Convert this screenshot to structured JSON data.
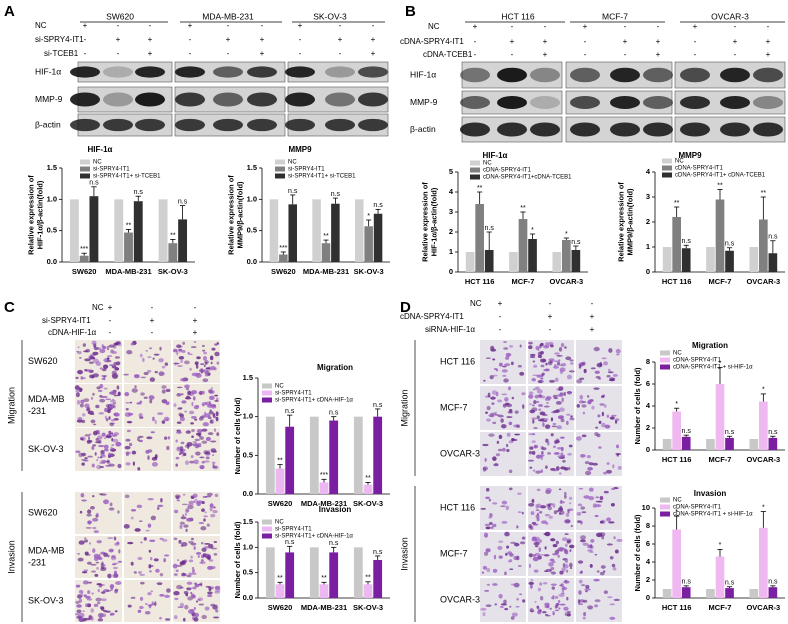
{
  "panels": {
    "A": {
      "letter": "A",
      "treatments": [
        "NC",
        "si-SPRY4-IT1",
        "si-TCEB1"
      ],
      "signs": [
        [
          "+",
          "-",
          "-"
        ],
        [
          "-",
          "+",
          "+"
        ],
        [
          "-",
          "-",
          "+"
        ]
      ],
      "cell_lines": [
        "SW620",
        "MDA-MB-231",
        "SK-OV-3"
      ],
      "blot_rows": [
        "HIF-1α",
        "MMP-9",
        "β-actin"
      ]
    },
    "B": {
      "letter": "B",
      "treatments": [
        "NC",
        "cDNA-SPRY4-IT1",
        "cDNA-TCEB1"
      ],
      "signs": [
        [
          "+",
          "-",
          "-"
        ],
        [
          "-",
          "+",
          "+"
        ],
        [
          "-",
          "-",
          "+"
        ]
      ],
      "cell_lines": [
        "HCT 116",
        "MCF-7",
        "OVCAR-3"
      ],
      "blot_rows": [
        "HIF-1α",
        "MMP-9",
        "β-actin"
      ]
    },
    "C": {
      "letter": "C",
      "treatments": [
        "NC",
        "si-SPRY4-IT1",
        "cDNA-HIF-1α"
      ],
      "signs": [
        [
          "+",
          "-",
          "-"
        ],
        [
          "-",
          "+",
          "+"
        ],
        [
          "-",
          "-",
          "+"
        ]
      ],
      "assays": [
        "Migration",
        "Invasion"
      ],
      "row_labels": [
        [
          "SW620"
        ],
        [
          "MDA-MB",
          "-231"
        ],
        [
          "SK-OV-3"
        ]
      ]
    },
    "D": {
      "letter": "D",
      "treatments": [
        "NC",
        "cDNA-SPRY4-IT1",
        "siRNA-HIF-1α"
      ],
      "signs": [
        [
          "+",
          "-",
          "-"
        ],
        [
          "-",
          "+",
          "+"
        ],
        [
          "-",
          "-",
          "+"
        ]
      ],
      "assays": [
        "Migration",
        "Invasion"
      ],
      "row_labels": [
        [
          "HCT 116"
        ],
        [
          "MCF-7"
        ],
        [
          "OVCAR-3"
        ]
      ]
    }
  },
  "chart_data": [
    {
      "type": "bar",
      "title": "HIF-1α",
      "ylabel": [
        "Relative expression of",
        "HIF-1α/β-actin(fold)"
      ],
      "categories": [
        "SW620",
        "MDA-MB-231",
        "SK-OV-3"
      ],
      "series": [
        {
          "name": "NC",
          "color": "#d0d0d0",
          "values": [
            1,
            1,
            1
          ]
        },
        {
          "name": "si-SPRY4-IT1",
          "color": "#808080",
          "values": [
            0.1,
            0.47,
            0.3
          ],
          "errors": [
            0.04,
            0.05,
            0.06
          ],
          "annotations": [
            "***",
            "**",
            "**"
          ]
        },
        {
          "name": "si-SPRY4-IT1+ si-TCEB1",
          "color": "#303030",
          "values": [
            1.05,
            0.97,
            0.68
          ],
          "errors": [
            0.15,
            0.08,
            0.22
          ],
          "annotations": [
            "n.s",
            "n.s",
            "n.s"
          ]
        }
      ],
      "ylim": [
        0,
        1.5
      ],
      "yticks": [
        {
          "value": 0,
          "label": "0.0"
        },
        {
          "value": 0.5,
          "label": "0.5"
        },
        {
          "value": 1,
          "label": "1.0"
        },
        {
          "value": 1.5,
          "label": "1.5"
        }
      ]
    },
    {
      "type": "bar",
      "title": "MMP9",
      "ylabel": [
        "Relative expression of",
        "MMP9/β-actin(fold)"
      ],
      "categories": [
        "SW620",
        "MDA-MB-231",
        "SK-OV-3"
      ],
      "series": [
        {
          "name": "NC",
          "color": "#d0d0d0",
          "values": [
            1,
            1,
            1
          ]
        },
        {
          "name": "si-SPRY4-IT1",
          "color": "#808080",
          "values": [
            0.12,
            0.3,
            0.57
          ],
          "errors": [
            0.04,
            0.05,
            0.1
          ],
          "annotations": [
            "***",
            "**",
            "*"
          ]
        },
        {
          "name": "si-SPRY4-IT1+ si-TCEB1",
          "color": "#303030",
          "values": [
            0.92,
            0.93,
            0.77
          ],
          "errors": [
            0.15,
            0.09,
            0.07
          ],
          "annotations": [
            "n.s",
            "n.s",
            "n.s"
          ]
        }
      ],
      "ylim": [
        0,
        1.5
      ],
      "yticks": [
        {
          "value": 0,
          "label": "0.0"
        },
        {
          "value": 0.5,
          "label": "0.5"
        },
        {
          "value": 1,
          "label": "1.0"
        },
        {
          "value": 1.5,
          "label": "1.5"
        }
      ]
    },
    {
      "type": "bar",
      "title": "HIF-1α",
      "ylabel": [
        "Relative expression of",
        "HIF-1α/β-actin(fold)"
      ],
      "categories": [
        "HCT 116",
        "MCF-7",
        "OVCAR-3"
      ],
      "series": [
        {
          "name": "NC",
          "color": "#d0d0d0",
          "values": [
            1,
            1,
            1
          ]
        },
        {
          "name": "cDNA-SPRY4-IT1",
          "color": "#808080",
          "values": [
            3.4,
            2.65,
            1.6
          ],
          "errors": [
            0.6,
            0.35,
            0.1
          ],
          "annotations": [
            "**",
            "**",
            "*"
          ]
        },
        {
          "name": "cDNA-SPRY4-IT1+cDNA-TCEB1",
          "color": "#303030",
          "values": [
            1.1,
            1.65,
            1.1
          ],
          "errors": [
            0.9,
            0.25,
            0.2
          ],
          "annotations": [
            "n.s",
            "*",
            "n.s"
          ]
        }
      ],
      "ylim": [
        0,
        5
      ],
      "yticks": [
        0,
        1,
        2,
        3,
        4,
        5
      ]
    },
    {
      "type": "bar",
      "title": "MMP9",
      "ylabel": [
        "Relative expression of",
        "MMP9/β-actin(fold)"
      ],
      "categories": [
        "HCT 116",
        "MCF-7",
        "OVCAR-3"
      ],
      "series": [
        {
          "name": "NC",
          "color": "#d0d0d0",
          "values": [
            1,
            1,
            1
          ]
        },
        {
          "name": "cDNA-SPRY4-IT1",
          "color": "#808080",
          "values": [
            2.2,
            2.9,
            2.1
          ],
          "errors": [
            0.4,
            0.4,
            0.9
          ],
          "annotations": [
            "**",
            "**",
            "**"
          ]
        },
        {
          "name": "cDNA-SPRY4-IT1+ cDNA-TCEB1",
          "color": "#303030",
          "values": [
            0.95,
            0.85,
            0.75
          ],
          "errors": [
            0.12,
            0.12,
            0.5
          ],
          "annotations": [
            "n.s",
            "n.s",
            "n.s"
          ]
        }
      ],
      "ylim": [
        0,
        4
      ],
      "yticks": [
        0,
        1,
        2,
        3,
        4
      ]
    },
    {
      "type": "bar",
      "title": "Migration",
      "ylabel": [
        "Number of cells (fold)"
      ],
      "categories": [
        "SW620",
        "MDA-MB-231",
        "SK-OV-3"
      ],
      "series": [
        {
          "name": "NC",
          "color": "#c8c8c8",
          "values": [
            1,
            1,
            1
          ]
        },
        {
          "name": "si-SPRY4-IT1",
          "color": "#ecb8f2",
          "values": [
            0.33,
            0.15,
            0.12
          ],
          "errors": [
            0.05,
            0.04,
            0.03
          ],
          "annotations": [
            "**",
            "***",
            "**"
          ]
        },
        {
          "name": "si-SPRY4-IT1+ cDNA-HIF-1α",
          "color": "#7b1fa2",
          "values": [
            0.87,
            0.95,
            1.0
          ],
          "errors": [
            0.15,
            0.05,
            0.1
          ],
          "annotations": [
            "n.s",
            "n.s",
            "n.s"
          ]
        }
      ],
      "ylim": [
        0,
        1.5
      ],
      "yticks": [
        {
          "value": 0,
          "label": "0.0"
        },
        {
          "value": 0.5,
          "label": "0.5"
        },
        {
          "value": 1,
          "label": "1.0"
        },
        {
          "value": 1.5,
          "label": "1.5"
        }
      ]
    },
    {
      "type": "bar",
      "title": "Invasion",
      "ylabel": [
        "Number of cells (fold)"
      ],
      "categories": [
        "SW620",
        "MDA-MB-231",
        "SK-OV-3"
      ],
      "series": [
        {
          "name": "NC",
          "color": "#c8c8c8",
          "values": [
            1,
            1,
            1
          ]
        },
        {
          "name": "si-SPRY4-IT1",
          "color": "#ecb8f2",
          "values": [
            0.27,
            0.27,
            0.27
          ],
          "errors": [
            0.04,
            0.04,
            0.05
          ],
          "annotations": [
            "**",
            "**",
            "**"
          ]
        },
        {
          "name": "si-SPRY4-IT1+ cDNA-HIF-1α",
          "color": "#7b1fa2",
          "values": [
            0.9,
            0.9,
            0.75
          ],
          "errors": [
            0.12,
            0.1,
            0.08
          ],
          "annotations": [
            "n.s",
            "n.s",
            "n.s"
          ]
        }
      ],
      "ylim": [
        0,
        1.5
      ],
      "yticks": [
        {
          "value": 0,
          "label": "0.0"
        },
        {
          "value": 0.5,
          "label": "0.5"
        },
        {
          "value": 1,
          "label": "1.0"
        },
        {
          "value": 1.5,
          "label": "1.5"
        }
      ]
    },
    {
      "type": "bar",
      "title": "Migration",
      "ylabel": [
        "Number of cells (fold)"
      ],
      "categories": [
        "HCT 116",
        "MCF-7",
        "OVCAR-3"
      ],
      "series": [
        {
          "name": "NC",
          "color": "#c8c8c8",
          "values": [
            1,
            1,
            1
          ]
        },
        {
          "name": "cDNA-SPRY4-IT1",
          "color": "#f0b8f0",
          "values": [
            3.5,
            6,
            4.4
          ],
          "errors": [
            0.3,
            1.5,
            0.7
          ],
          "annotations": [
            "*",
            "*",
            "*"
          ]
        },
        {
          "name": "cDNA-SPRY4-IT1 + si-HIF-1α",
          "color": "#7b1fa2",
          "values": [
            1.2,
            1.1,
            1.1
          ],
          "errors": [
            0.15,
            0.15,
            0.15
          ],
          "annotations": [
            "n.s",
            "n.s",
            "n.s"
          ]
        }
      ],
      "ylim": [
        0,
        8
      ],
      "yticks": [
        0,
        2,
        4,
        6,
        8
      ]
    },
    {
      "type": "bar",
      "title": "Invasion",
      "ylabel": [
        "Number of cells (fold)"
      ],
      "categories": [
        "HCT 116",
        "MCF-7",
        "OVCAR-3"
      ],
      "series": [
        {
          "name": "NC",
          "color": "#c8c8c8",
          "values": [
            1,
            1,
            1
          ]
        },
        {
          "name": "cDNA-SPRY4-IT1",
          "color": "#f0b8f0",
          "values": [
            7.6,
            4.6,
            7.8
          ],
          "errors": [
            1.5,
            0.8,
            1.8
          ],
          "annotations": [
            "*",
            "*",
            "*"
          ]
        },
        {
          "name": "cDNA-SPRY4-IT1 + si-HIF-1α",
          "color": "#7b1fa2",
          "values": [
            1.2,
            1.1,
            1.2
          ],
          "errors": [
            0.15,
            0.15,
            0.15
          ],
          "annotations": [
            "n.s",
            "n.s",
            "n.s"
          ]
        }
      ],
      "ylim": [
        0,
        10
      ],
      "yticks": [
        0,
        2,
        4,
        6,
        8,
        10
      ]
    }
  ]
}
